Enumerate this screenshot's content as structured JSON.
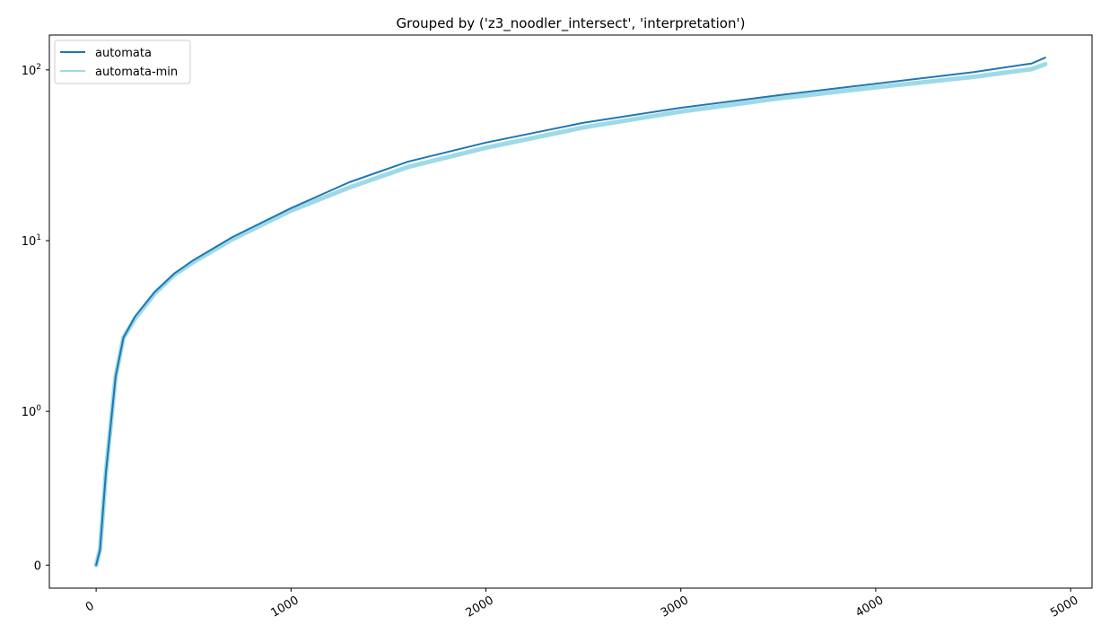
{
  "chart_data": {
    "type": "line",
    "title": "Grouped by ('z3_noodler_intersect', 'interpretation')",
    "xlabel": "",
    "ylabel": "",
    "yscale": "symlog",
    "xlim": [
      -240,
      5110
    ],
    "ylim": [
      -0.15,
      160
    ],
    "grid": false,
    "legend_position": "top-left",
    "x_ticks": [
      {
        "value": 0,
        "label": "0"
      },
      {
        "value": 1000,
        "label": "1000"
      },
      {
        "value": 2000,
        "label": "2000"
      },
      {
        "value": 3000,
        "label": "3000"
      },
      {
        "value": 4000,
        "label": "4000"
      },
      {
        "value": 5000,
        "label": "5000"
      }
    ],
    "y_ticks": [
      {
        "value": 0,
        "label": "0"
      },
      {
        "value": 1,
        "label": "10",
        "exponent": "0"
      },
      {
        "value": 10,
        "label": "10",
        "exponent": "1"
      },
      {
        "value": 100,
        "label": "10",
        "exponent": "2"
      }
    ],
    "series": [
      {
        "name": "automata",
        "color": "#1f77b4",
        "x": [
          0,
          20,
          50,
          100,
          140,
          200,
          300,
          400,
          500,
          700,
          1000,
          1300,
          1600,
          2000,
          2500,
          3000,
          3500,
          4000,
          4500,
          4800,
          4870
        ],
        "y": [
          0,
          0.1,
          0.6,
          1.6,
          2.7,
          3.6,
          5.0,
          6.4,
          7.7,
          10.5,
          15.5,
          22.0,
          29.0,
          37.5,
          49.0,
          60.0,
          71.0,
          83.0,
          97.0,
          109.0,
          118.0
        ]
      },
      {
        "name": "automata-min",
        "color": "#9edae5",
        "x": [
          0,
          20,
          50,
          100,
          140,
          200,
          300,
          400,
          500,
          700,
          1000,
          1300,
          1600,
          2000,
          2500,
          3000,
          3500,
          4000,
          4500,
          4800,
          4870
        ],
        "y": [
          0,
          0.1,
          0.6,
          1.6,
          2.7,
          3.5,
          4.9,
          6.3,
          7.5,
          10.2,
          15.0,
          20.5,
          27.0,
          35.0,
          46.0,
          57.0,
          68.0,
          79.0,
          91.0,
          101.0,
          108.0
        ]
      }
    ]
  }
}
